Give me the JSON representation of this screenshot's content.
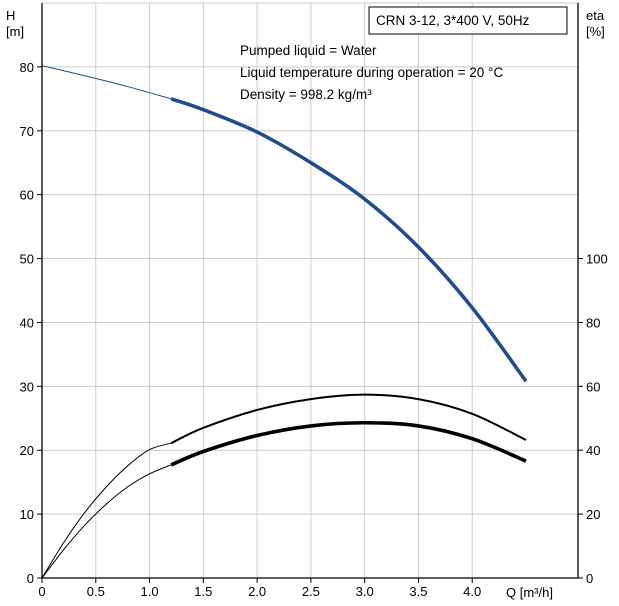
{
  "chart_data": {
    "type": "line",
    "title": "CRN 3-12, 3*400 V, 50Hz",
    "annotations": [
      "Pumped liquid = Water",
      "Liquid temperature during operation = 20 °C",
      "Density = 998.2 kg/m³"
    ],
    "xlabel": "Q [m³/h]",
    "ylabel_left_line1": "H",
    "ylabel_left_line2": "[m]",
    "ylabel_right_line1": "eta",
    "ylabel_right_line2": "[%]",
    "xlim": [
      0,
      4.5
    ],
    "ylim_left": [
      0,
      90
    ],
    "ylim_right": [
      0,
      180
    ],
    "x_ticks": [
      "0",
      "0.5",
      "1.0",
      "1.5",
      "2.0",
      "2.5",
      "3.0",
      "3.5",
      "4.0"
    ],
    "x_tick_values": [
      0,
      0.5,
      1.0,
      1.5,
      2.0,
      2.5,
      3.0,
      3.5,
      4.0
    ],
    "y_left_ticks": [
      "0",
      "10",
      "20",
      "30",
      "40",
      "50",
      "60",
      "70",
      "80"
    ],
    "y_left_tick_values": [
      0,
      10,
      20,
      30,
      40,
      50,
      60,
      70,
      80
    ],
    "y_right_ticks": [
      "0",
      "20",
      "40",
      "60",
      "80",
      "100"
    ],
    "y_right_tick_values": [
      0,
      20,
      40,
      60,
      80,
      100
    ],
    "grid": true,
    "colors": {
      "head": "#1f4e8c",
      "efficiency": "#000000",
      "grid": "#cccccc"
    },
    "series": [
      {
        "axis": "left",
        "style": "thin",
        "x": [
          0,
          0.4,
          0.8,
          1.2
        ],
        "y": [
          80.2,
          78.6,
          76.9,
          75.0
        ]
      },
      {
        "axis": "left",
        "style": "thick",
        "x": [
          1.2,
          1.5,
          2.0,
          2.5,
          3.0,
          3.5,
          4.0,
          4.5
        ],
        "y": [
          75.0,
          73.3,
          69.8,
          65.0,
          59.3,
          51.8,
          42.3,
          30.8
        ]
      },
      {
        "axis": "right",
        "style": "thin",
        "x": [
          0,
          0.2,
          0.4,
          0.6,
          0.8,
          1.0,
          1.2
        ],
        "y": [
          0,
          11.0,
          20.6,
          28.6,
          35.2,
          40.2,
          42.2
        ]
      },
      {
        "axis": "right",
        "style": "medium",
        "x": [
          1.2,
          1.5,
          2.0,
          2.5,
          3.0,
          3.5,
          4.0,
          4.5
        ],
        "y": [
          42.2,
          47.0,
          52.6,
          56.0,
          57.4,
          56.0,
          51.4,
          43.2
        ]
      },
      {
        "axis": "right",
        "style": "thin",
        "x": [
          0,
          0.2,
          0.4,
          0.6,
          0.8,
          1.0,
          1.2
        ],
        "y": [
          0,
          8.8,
          16.6,
          23.2,
          28.6,
          32.6,
          35.4
        ]
      },
      {
        "axis": "right",
        "style": "thick",
        "x": [
          1.2,
          1.5,
          2.0,
          2.5,
          3.0,
          3.5,
          4.0,
          4.5
        ],
        "y": [
          35.4,
          39.6,
          44.6,
          47.6,
          48.6,
          47.6,
          43.6,
          36.6
        ]
      }
    ]
  }
}
